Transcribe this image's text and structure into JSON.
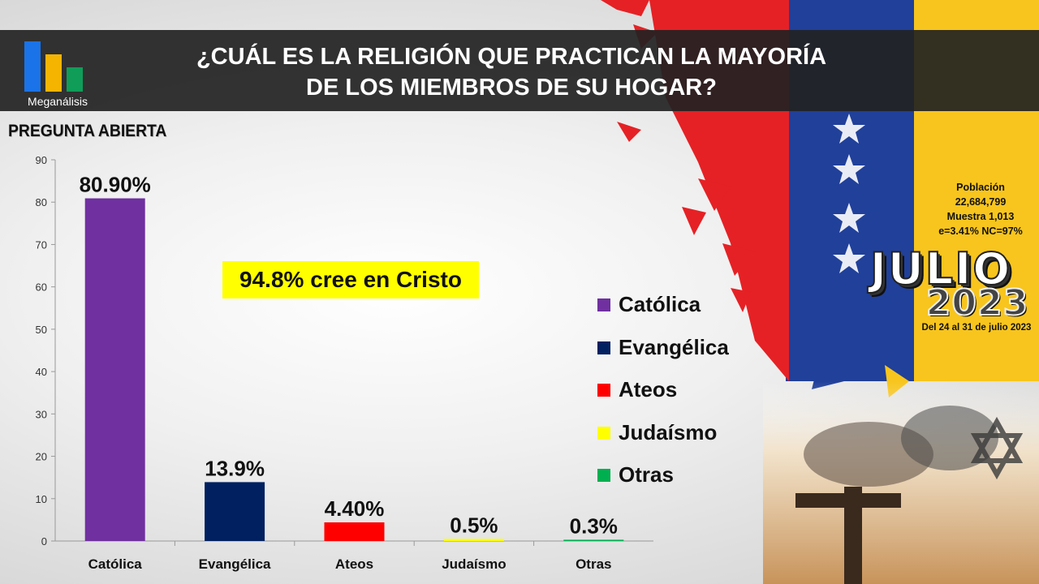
{
  "header": {
    "title_line1": "¿CUÁL ES LA RELIGIÓN QUE PRACTICAN LA MAYORÍA",
    "title_line2": "DE LOS MIEMBROS DE SU HOGAR?",
    "logo_text": "Meganálisis",
    "logo_colors": [
      "#1a73e8",
      "#f4b400",
      "#0f9d58"
    ]
  },
  "subtitle": "PREGUNTA  ABIERTA",
  "callout": "94.8% cree en Cristo",
  "info": {
    "line1": "Población",
    "line2": "22,684,799",
    "line3": "Muestra 1,013",
    "line4": "e=3.41%  NC=97%"
  },
  "month": "JULIO",
  "year": "2023",
  "period": "Del 24 al 31 de julio 2023",
  "legend": [
    {
      "label": "Católica",
      "color": "#7030a0"
    },
    {
      "label": "Evangélica",
      "color": "#002060"
    },
    {
      "label": "Ateos",
      "color": "#ff0000"
    },
    {
      "label": "Judaísmo",
      "color": "#ffff00"
    },
    {
      "label": "Otras",
      "color": "#00b050"
    }
  ],
  "chart_data": {
    "type": "bar",
    "categories": [
      "Católica",
      "Evangélica",
      "Ateos",
      "Judaísmo",
      "Otras"
    ],
    "values": [
      80.9,
      13.9,
      4.4,
      0.5,
      0.3
    ],
    "data_labels": [
      "80.90%",
      "13.9%",
      "4.40%",
      "0.5%",
      "0.3%"
    ],
    "colors": [
      "#7030a0",
      "#002060",
      "#ff0000",
      "#ffff00",
      "#00b050"
    ],
    "ylim": [
      0,
      90
    ],
    "yticks": [
      0,
      10,
      20,
      30,
      40,
      50,
      60,
      70,
      80,
      90
    ],
    "legend_position": "right"
  }
}
